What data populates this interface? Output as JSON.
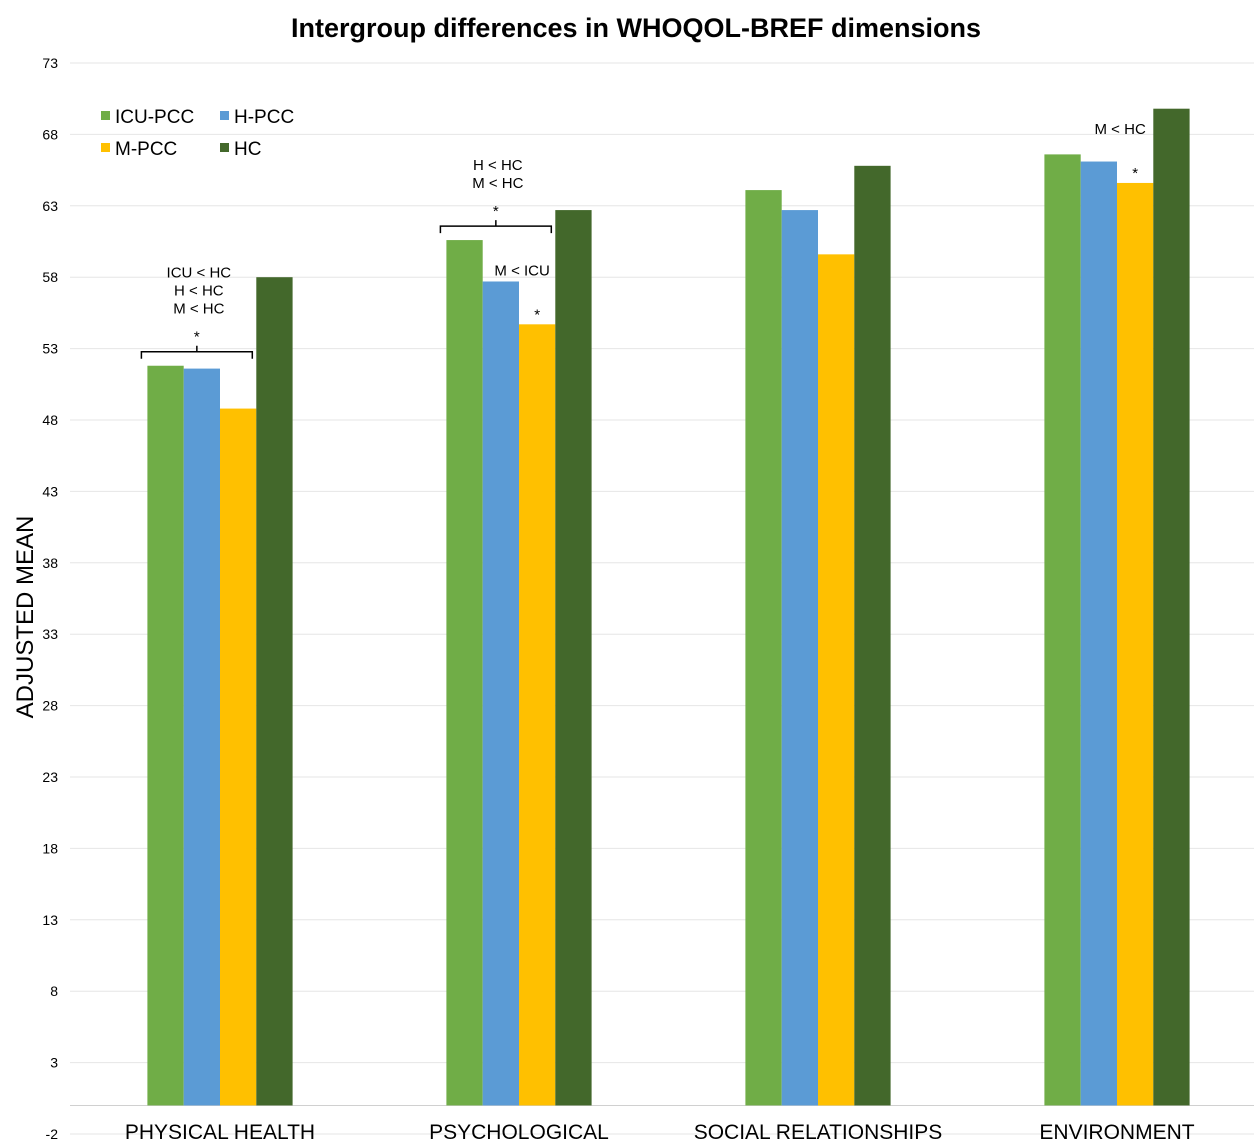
{
  "chart_data": {
    "type": "bar",
    "title": "Intergroup differences in WHOQOL-BREF dimensions",
    "ylabel": "ADJUSTED MEAN",
    "xlabel": "",
    "ylim": [
      -2,
      73
    ],
    "yticks": [
      -2,
      3,
      8,
      13,
      18,
      23,
      28,
      33,
      38,
      43,
      48,
      53,
      58,
      63,
      68,
      73
    ],
    "grid": true,
    "legend_position": "top-left",
    "categories": [
      "PHYSICAL HEALTH",
      "PSYCHOLOGICAL",
      "SOCIAL RELATIONSHIPS",
      "ENVIRONMENT"
    ],
    "series": [
      {
        "name": "ICU-PCC",
        "color": "#70ad47",
        "values": [
          51.8,
          60.6,
          64.1,
          66.6
        ]
      },
      {
        "name": "H-PCC",
        "color": "#5b9bd5",
        "values": [
          51.6,
          57.7,
          62.7,
          66.1
        ]
      },
      {
        "name": "M-PCC",
        "color": "#ffc000",
        "values": [
          48.8,
          54.7,
          59.6,
          64.6
        ]
      },
      {
        "name": "HC",
        "color": "#43682b",
        "values": [
          58.0,
          62.7,
          65.8,
          69.8
        ]
      }
    ],
    "annotations": [
      {
        "category": 0,
        "lines": [
          "ICU < HC",
          "H < HC",
          "M < HC"
        ],
        "marker": "*",
        "bracket_series": [
          0,
          2
        ]
      },
      {
        "category": 1,
        "lines": [
          "H < HC",
          "M < HC"
        ],
        "marker": "*",
        "bracket_series": [
          0,
          2
        ]
      },
      {
        "category": 1,
        "lines": [
          "M < ICU"
        ],
        "marker": "*",
        "over_series": 2
      },
      {
        "category": 3,
        "lines": [
          "M < HC"
        ],
        "marker": "*",
        "over_series": 2
      }
    ]
  }
}
